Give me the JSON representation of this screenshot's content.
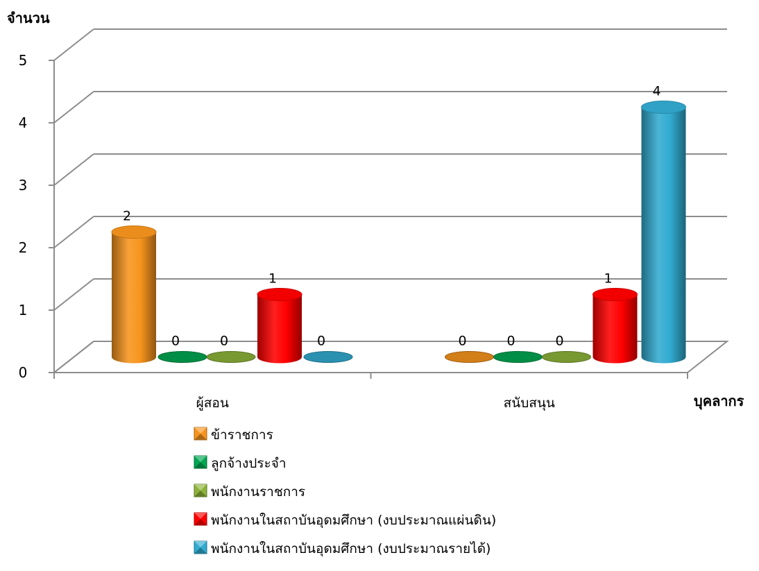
{
  "chart_data": {
    "type": "bar",
    "title": "",
    "ylabel": "จำนวน",
    "xlabel": "บุคลากร",
    "ylim": [
      0,
      5
    ],
    "yticks": [
      0,
      1,
      2,
      3,
      4,
      5
    ],
    "categories": [
      "ผู้สอน",
      "สนับสนุน"
    ],
    "series": [
      {
        "name": "ข้าราชการ",
        "values": [
          2,
          0
        ],
        "color": "#F7941D"
      },
      {
        "name": "ลูกจ้างประจำ",
        "values": [
          0,
          0
        ],
        "color": "#00A651"
      },
      {
        "name": "พนักงานราชการ",
        "values": [
          0,
          0
        ],
        "color": "#8DB33A"
      },
      {
        "name": "พนักงานในสถาบันอุดมศึกษา (งบประมาณแผ่นดิน)",
        "values": [
          1,
          1
        ],
        "color": "#FF0000"
      },
      {
        "name": "พนักงานในสถาบันอุดมศึกษา (งบประมาณรายได้)",
        "values": [
          0,
          4
        ],
        "color": "#31ABD0"
      }
    ],
    "grid": true,
    "legend": "bottom",
    "style": "3d-cylinder"
  }
}
